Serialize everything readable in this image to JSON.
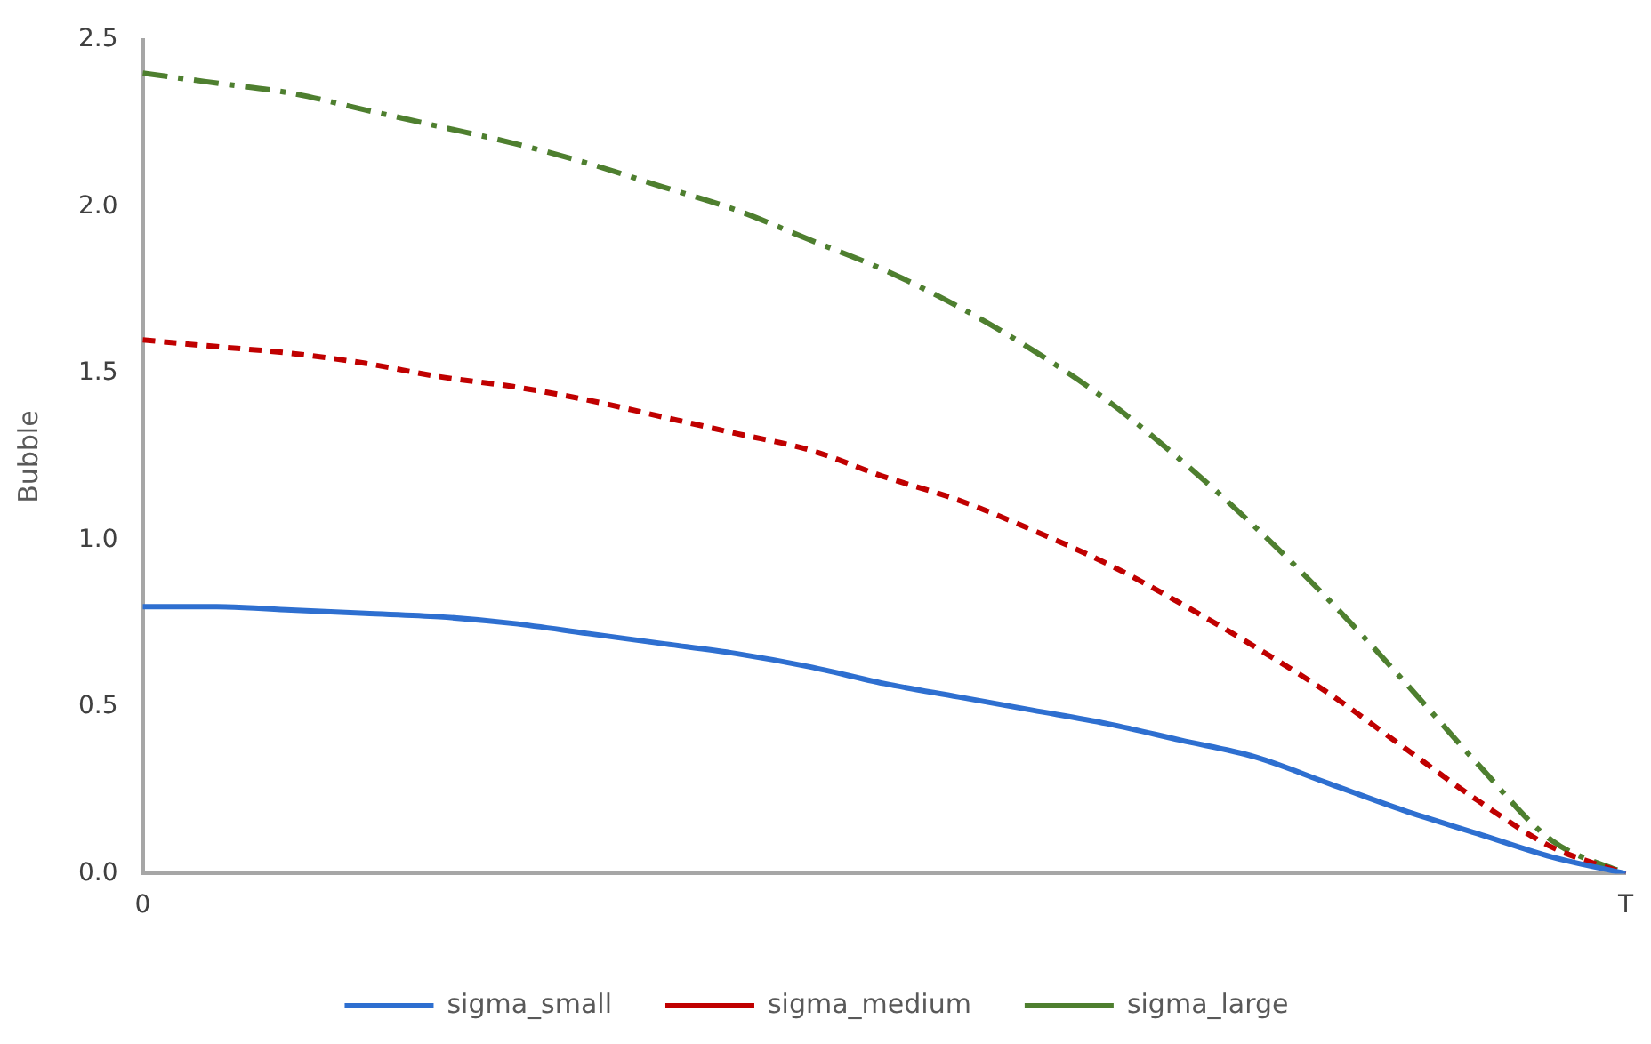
{
  "chart_data": {
    "type": "line",
    "ylabel": "Bubble",
    "categories": [
      "0",
      null,
      null,
      null,
      null,
      null,
      null,
      null,
      null,
      null,
      null,
      null,
      null,
      null,
      null,
      null,
      null,
      null,
      null,
      null,
      "T"
    ],
    "series": [
      {
        "name": "sigma_small",
        "color": "#2e6fd0",
        "line_style": "solid",
        "values": [
          0.8,
          0.8,
          0.79,
          0.78,
          0.77,
          0.75,
          0.72,
          0.69,
          0.66,
          0.62,
          0.57,
          0.53,
          0.49,
          0.45,
          0.4,
          0.35,
          0.27,
          0.19,
          0.12,
          0.05,
          0.0
        ]
      },
      {
        "name": "sigma_medium",
        "color": "#c00000",
        "line_style": "dashed",
        "values": [
          1.6,
          1.58,
          1.56,
          1.53,
          1.49,
          1.46,
          1.42,
          1.37,
          1.32,
          1.27,
          1.19,
          1.12,
          1.03,
          0.93,
          0.81,
          0.68,
          0.54,
          0.38,
          0.22,
          0.08,
          0.0
        ]
      },
      {
        "name": "sigma_large",
        "color": "#4e7f2f",
        "line_style": "dash-dot",
        "values": [
          2.4,
          2.37,
          2.34,
          2.29,
          2.24,
          2.19,
          2.13,
          2.06,
          1.99,
          1.9,
          1.81,
          1.7,
          1.57,
          1.42,
          1.24,
          1.04,
          0.82,
          0.58,
          0.33,
          0.1,
          0.0
        ]
      }
    ],
    "ylim": [
      0,
      2.5
    ],
    "yticks": [
      {
        "value": 0,
        "label": "0.0"
      },
      {
        "value": 0.5,
        "label": "0.5"
      },
      {
        "value": 1,
        "label": "1.0"
      },
      {
        "value": 1.5,
        "label": "1.5"
      },
      {
        "value": 2,
        "label": "2.0"
      },
      {
        "value": 2.5,
        "label": "2.5"
      }
    ],
    "grid": false,
    "legend": "bottom",
    "marker": "none"
  }
}
